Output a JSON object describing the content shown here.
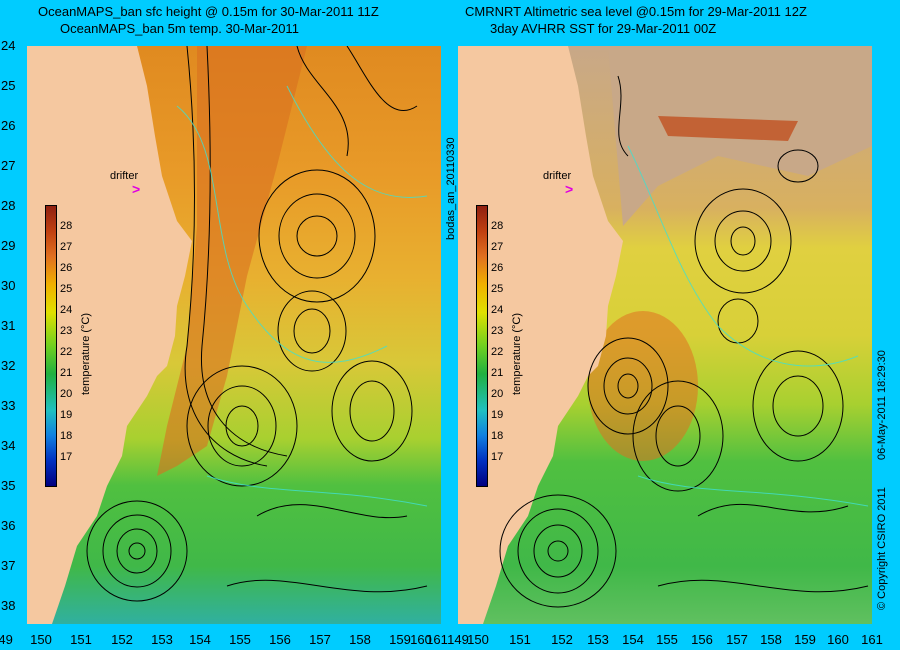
{
  "left_panel": {
    "title_line1": "OceanMAPS_ban sfc height @ 0.15m for 30-Mar-2011 11Z",
    "title_line2": "OceanMAPS_ban 5m temp. 30-Mar-2011",
    "side_label": "bodas_an_20110330"
  },
  "right_panel": {
    "title_line1": "CMRNRT Altimetric sea level  @0.15m  for 29-Mar-2011 12Z",
    "title_line2": "3day AVHRR SST for 29-Mar-2011 00Z",
    "side_label": "06-May-2011 18:29:30",
    "copyright": "© Copyright CSIRO 2011"
  },
  "drifter_label": "drifter",
  "drifter_marker": ">",
  "latitudes": [
    "24",
    "25",
    "26",
    "27",
    "28",
    "29",
    "30",
    "31",
    "32",
    "33",
    "34",
    "35",
    "36",
    "37",
    "38"
  ],
  "longitudes": [
    "149",
    "150",
    "151",
    "152",
    "153",
    "154",
    "155",
    "156",
    "157",
    "158",
    "159",
    "160",
    "161"
  ],
  "colorbar": {
    "label": "temperature (°C)",
    "ticks": [
      "28",
      "27",
      "26",
      "25",
      "24",
      "23",
      "22",
      "21",
      "20",
      "19",
      "18",
      "17"
    ]
  },
  "colors": {
    "background": "#00ccff",
    "land": "#f5c8a0",
    "cloud": "#c8a888",
    "drifter": "#e000e0"
  }
}
